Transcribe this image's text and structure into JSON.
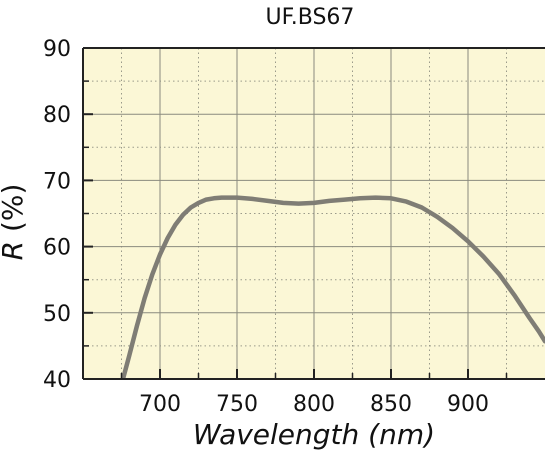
{
  "chart_data": {
    "type": "line",
    "title": "UF.BS67",
    "xlabel": "Wavelength (nm)",
    "ylabel_italic": "R",
    "ylabel_rest": " (%)",
    "xlim": [
      650,
      950
    ],
    "ylim": [
      40,
      90
    ],
    "x_major_ticks": [
      700,
      750,
      800,
      850,
      900
    ],
    "x_minor_ticks": [
      675,
      725,
      775,
      825,
      875,
      925
    ],
    "y_major_ticks": [
      40,
      50,
      60,
      70,
      80,
      90
    ],
    "y_minor_ticks": [
      45,
      55,
      65,
      75,
      85
    ],
    "grid": true,
    "colors": {
      "background": "#fbf7d6",
      "curve": "#7f7d75",
      "grid_major": "#8a8a7e",
      "grid_minor": "#9a9a8a",
      "axis": "#222222"
    },
    "series": [
      {
        "x": [
          676,
          680,
          685,
          690,
          695,
          700,
          705,
          710,
          715,
          720,
          725,
          730,
          735,
          740,
          745,
          750,
          760,
          770,
          780,
          790,
          800,
          810,
          820,
          830,
          840,
          850,
          860,
          870,
          880,
          890,
          900,
          910,
          920,
          930,
          940,
          946,
          950
        ],
        "y": [
          40.0,
          43.5,
          48.0,
          52.2,
          55.8,
          58.8,
          61.3,
          63.3,
          64.8,
          65.9,
          66.6,
          67.1,
          67.3,
          67.4,
          67.4,
          67.4,
          67.2,
          66.9,
          66.6,
          66.5,
          66.6,
          66.9,
          67.1,
          67.3,
          67.4,
          67.3,
          66.8,
          65.9,
          64.5,
          62.8,
          60.8,
          58.5,
          55.9,
          52.7,
          49.2,
          47.2,
          45.7
        ]
      }
    ]
  }
}
